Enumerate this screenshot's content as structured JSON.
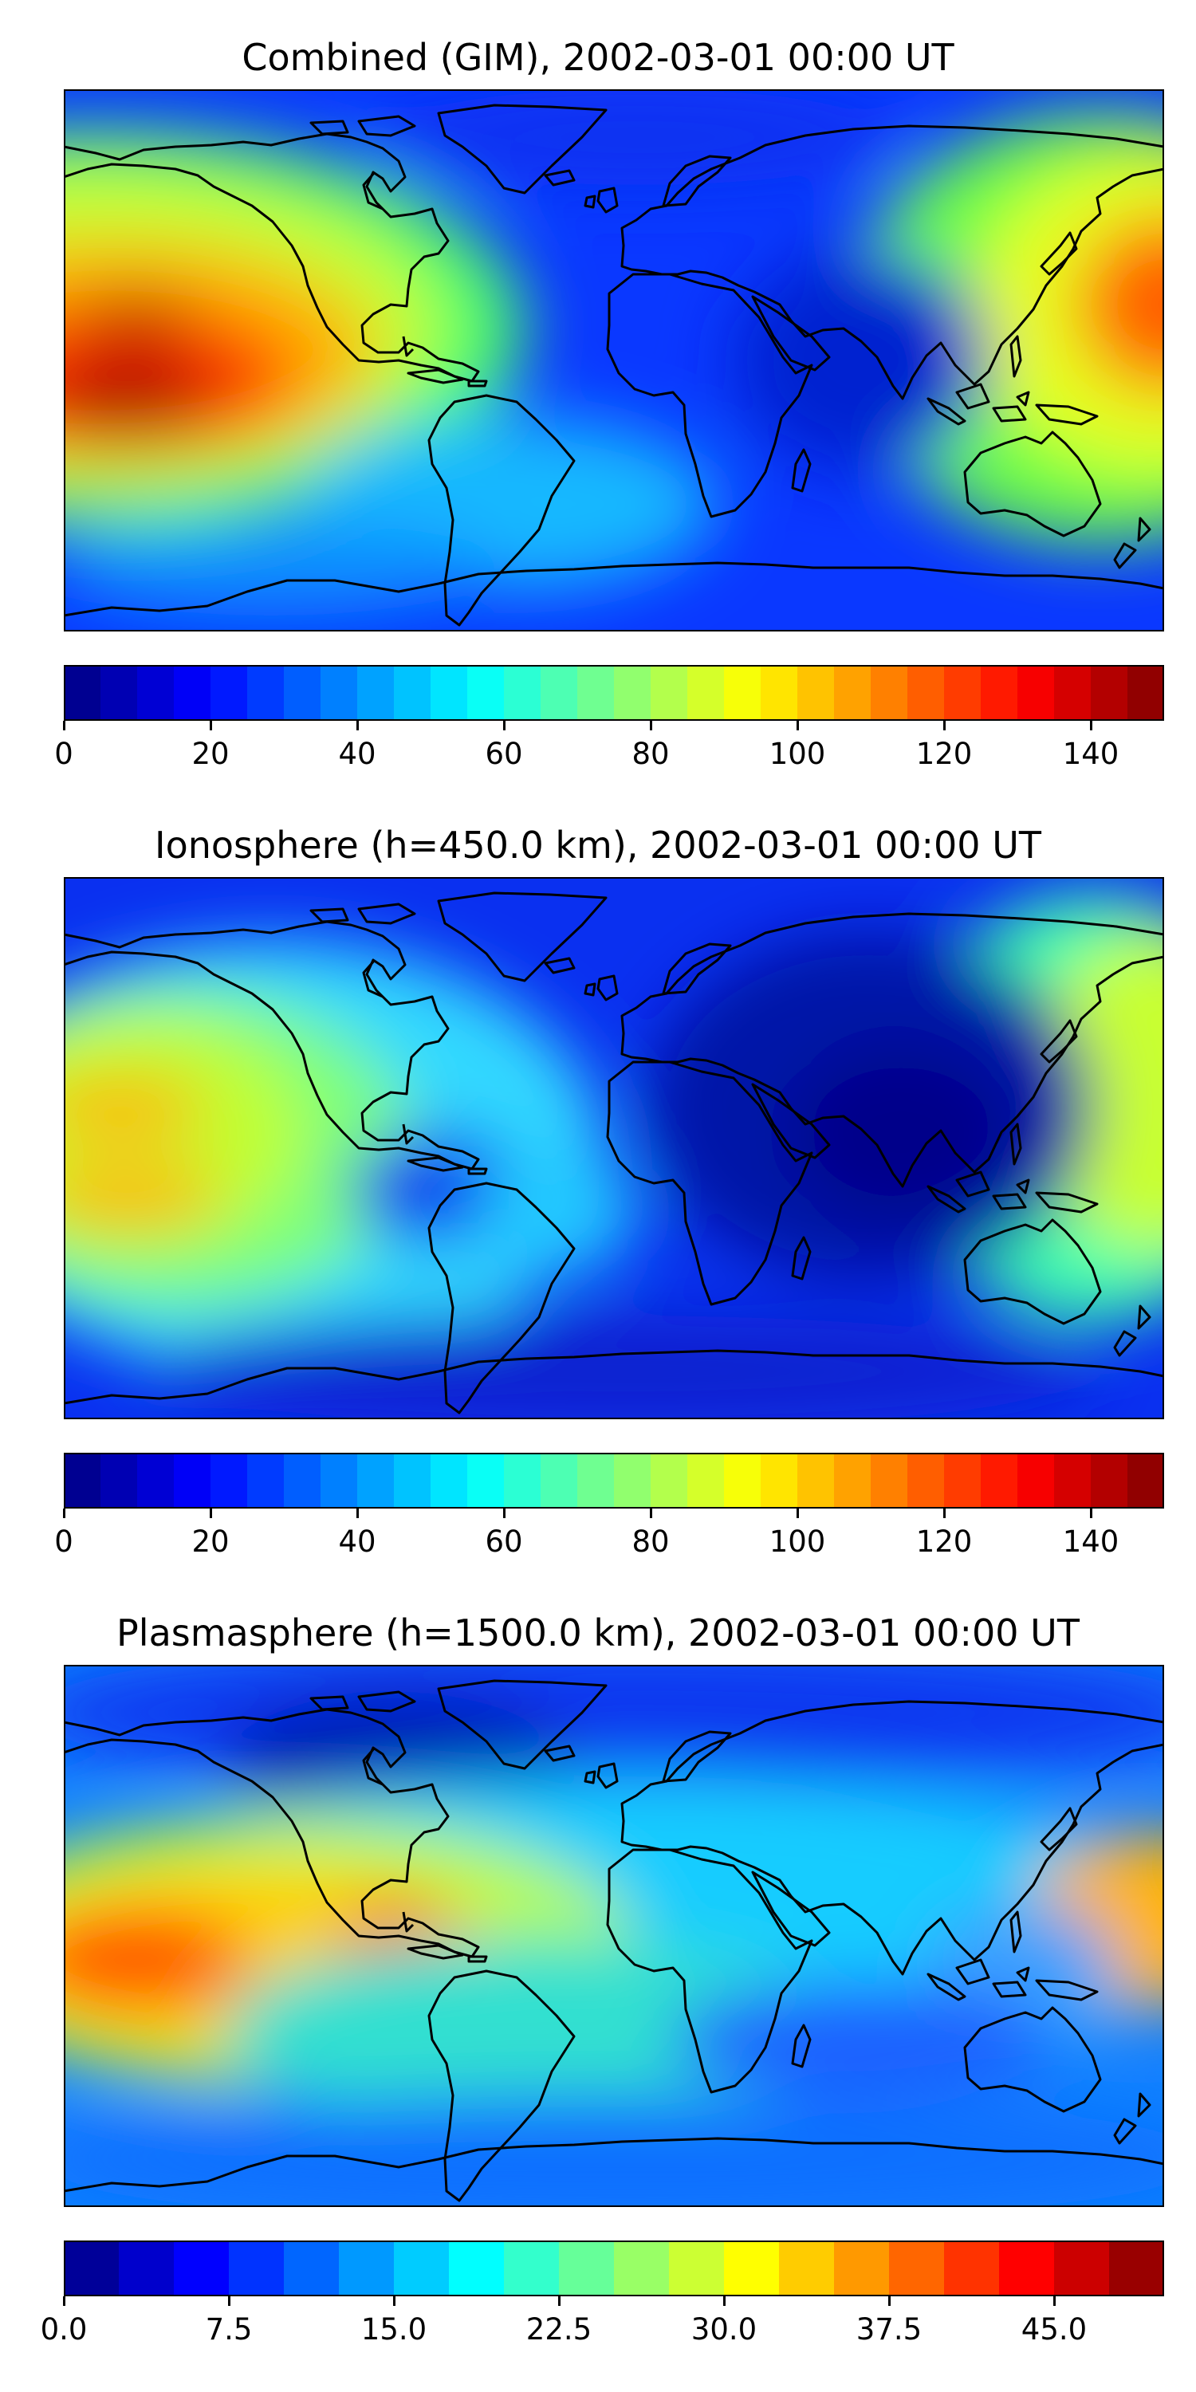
{
  "figure": {
    "panels": [
      {
        "id": "combined",
        "title": "Combined (GIM), 2002-03-01 00:00 UT",
        "colorbar": {
          "min": 0,
          "max": 150,
          "levels": 30,
          "colormap": "jet",
          "tick_values": [
            0,
            20,
            40,
            60,
            80,
            100,
            120,
            140
          ],
          "tick_labels": [
            "0",
            "20",
            "40",
            "60",
            "80",
            "100",
            "120",
            "140"
          ]
        }
      },
      {
        "id": "ionosphere",
        "title": "Ionosphere  (h=450.0 km), 2002-03-01 00:00 UT",
        "colorbar": {
          "min": 0,
          "max": 150,
          "levels": 30,
          "colormap": "jet",
          "tick_values": [
            0,
            20,
            40,
            60,
            80,
            100,
            120,
            140
          ],
          "tick_labels": [
            "0",
            "20",
            "40",
            "60",
            "80",
            "100",
            "120",
            "140"
          ]
        }
      },
      {
        "id": "plasmasphere",
        "title": "Plasmasphere (h=1500.0 km), 2002-03-01 00:00 UT",
        "colorbar": {
          "min": 0,
          "max": 50,
          "levels": 20,
          "colormap": "jet",
          "tick_values": [
            0,
            7.5,
            15,
            22.5,
            30,
            37.5,
            45
          ],
          "tick_labels": [
            "0.0",
            "7.5",
            "15.0",
            "22.5",
            "30.0",
            "37.5",
            "45.0"
          ]
        }
      }
    ]
  }
}
